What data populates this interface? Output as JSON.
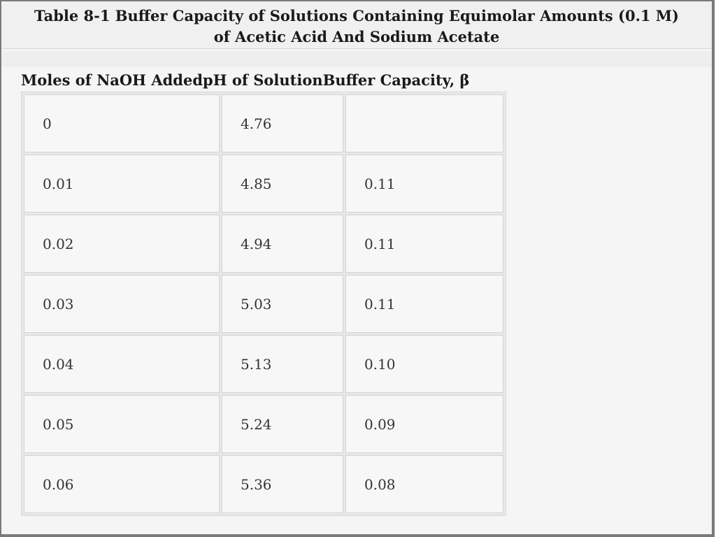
{
  "title": {
    "line1": "Table 8-1 Buffer Capacity of Solutions Containing Equimolar Amounts (0.1 M)",
    "line2": "of Acetic Acid And Sodium Acetate"
  },
  "table": {
    "headers": [
      "Moles of NaOH Added",
      "pH of Solution",
      "Buffer Capacity, β"
    ],
    "rows": [
      [
        "0",
        "4.76",
        ""
      ],
      [
        "0.01",
        "4.85",
        "0.11"
      ],
      [
        "0.02",
        "4.94",
        "0.11"
      ],
      [
        "0.03",
        "5.03",
        "0.11"
      ],
      [
        "0.04",
        "5.13",
        "0.10"
      ],
      [
        "0.05",
        "5.24",
        "0.09"
      ],
      [
        "0.06",
        "5.36",
        "0.08"
      ]
    ]
  }
}
